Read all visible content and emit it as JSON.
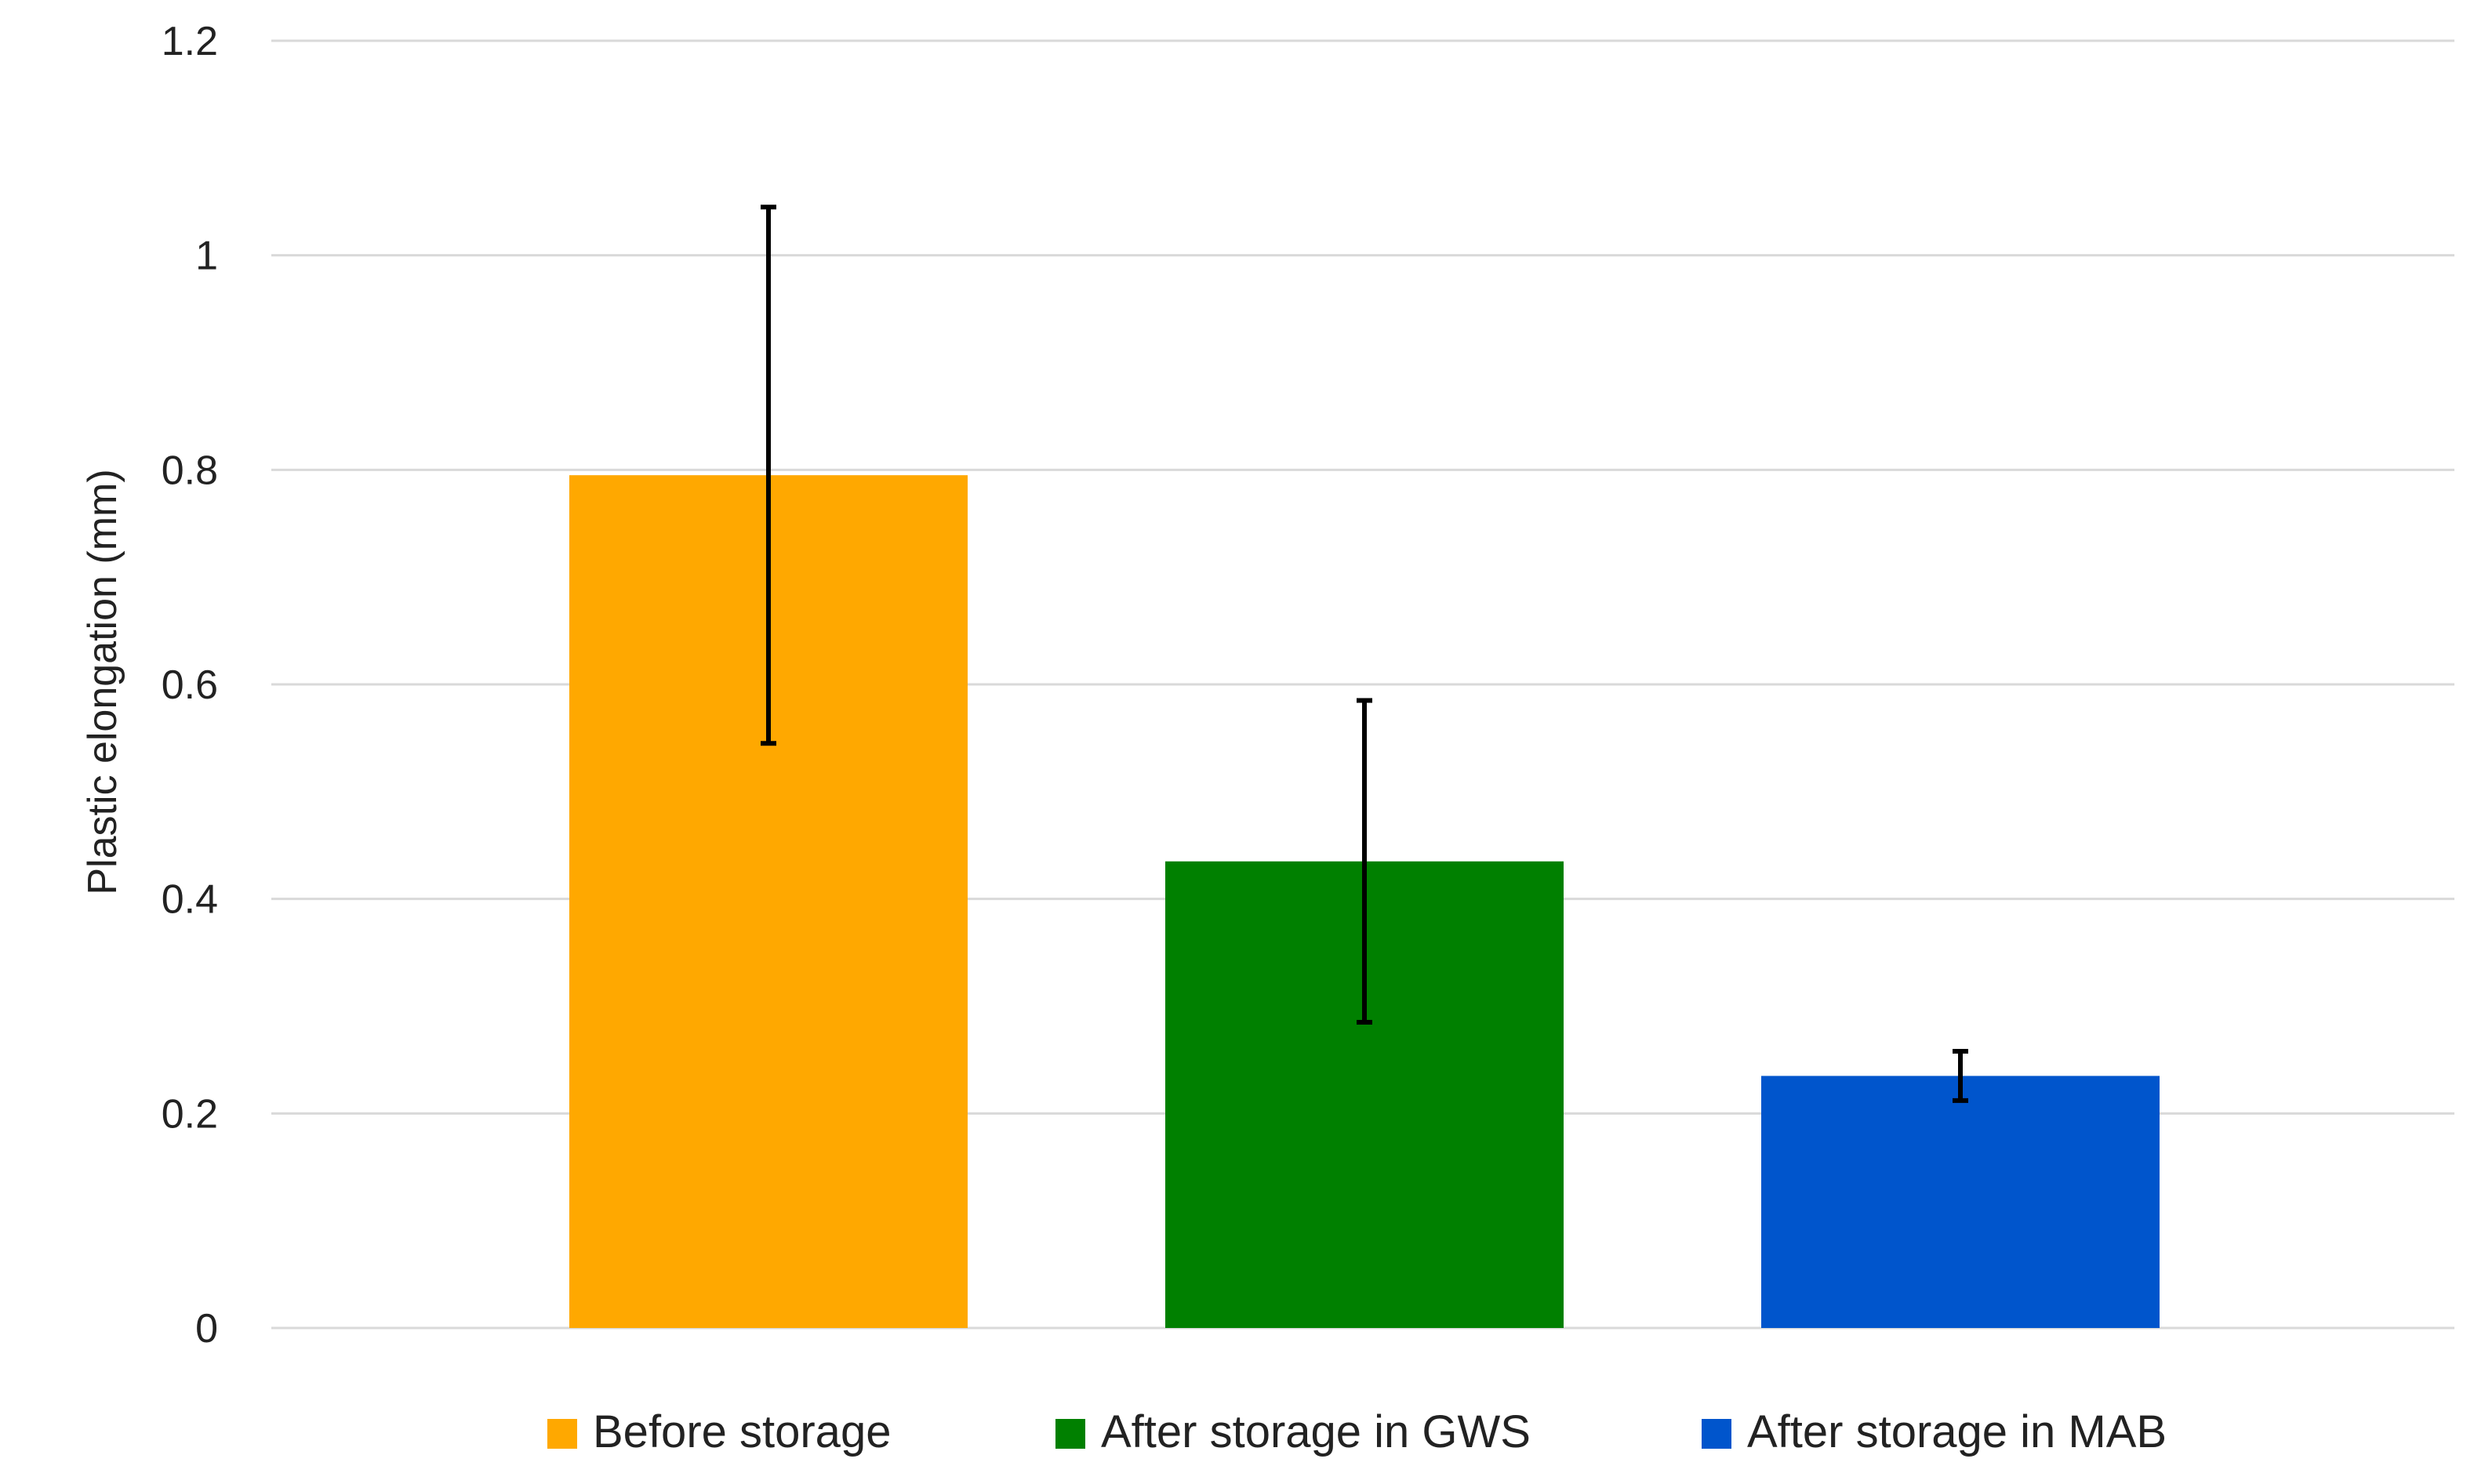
{
  "chart_data": {
    "type": "bar",
    "title": "",
    "xlabel": "",
    "ylabel": "Plastic elongation (mm)",
    "ylim": [
      0,
      1.2
    ],
    "yticks": [
      0,
      0.2,
      0.4,
      0.6,
      0.8,
      1,
      1.2
    ],
    "ytick_labels": [
      "0",
      "0.2",
      "0.4",
      "0.6",
      "0.8",
      "1",
      "1.2"
    ],
    "grid": true,
    "legend_position": "bottom",
    "series": [
      {
        "name": "Before storage",
        "value": 0.795,
        "error_low": 0.545,
        "error_high": 1.045,
        "color": "#FFA800"
      },
      {
        "name": "After storage in GWS",
        "value": 0.435,
        "error_low": 0.285,
        "error_high": 0.585,
        "color": "#008000"
      },
      {
        "name": "After storage in MAB",
        "value": 0.235,
        "error_low": 0.212,
        "error_high": 0.258,
        "color": "#0055CC"
      }
    ]
  }
}
